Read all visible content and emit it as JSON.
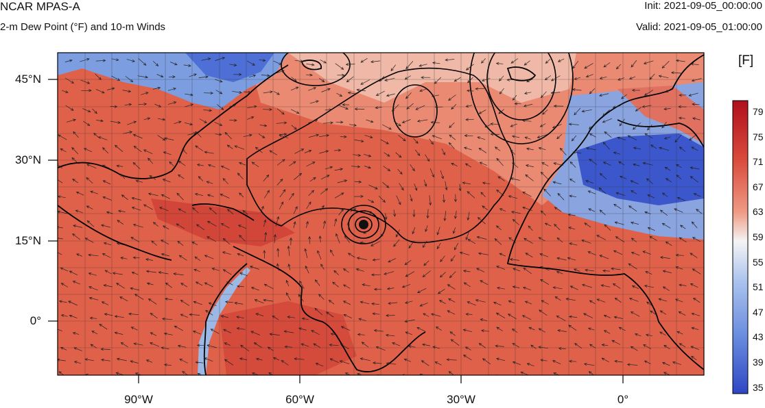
{
  "header": {
    "model": "NCAR MPAS-A",
    "field": "2-m Dew Point (°F) and 10-m Winds",
    "init": "Init: 2021-09-05_00:00:00",
    "valid": "Valid: 2021-09-05_01:00:00"
  },
  "map": {
    "projection": "cylindrical equidistant",
    "lon_range": [
      -105,
      15
    ],
    "lat_range": [
      -10,
      50
    ],
    "lat_ticks": [
      {
        "lat": 45,
        "label": "45°N"
      },
      {
        "lat": 30,
        "label": "30°N"
      },
      {
        "lat": 15,
        "label": "15°N"
      },
      {
        "lat": 0,
        "label": "0°"
      }
    ],
    "lon_ticks": [
      {
        "lon": -90,
        "label": "90°W"
      },
      {
        "lon": -60,
        "label": "60°W"
      },
      {
        "lon": -30,
        "label": "30°W"
      },
      {
        "lon": 0,
        "label": "0°"
      }
    ],
    "gridlines": true,
    "grid_spacing_deg": 5,
    "overlays": [
      "coastlines",
      "pressure contours",
      "wind arrows"
    ],
    "hurricane_center": {
      "lon": -47,
      "lat": 18
    }
  },
  "colorbar": {
    "unit": "[F]",
    "min": 35,
    "max": 81,
    "labels": [
      "79",
      "75",
      "71",
      "67",
      "63",
      "59",
      "55",
      "51",
      "47",
      "43",
      "39",
      "35"
    ],
    "low_color": "#2e46c4",
    "mid_color": "#f4f4f4",
    "high_color": "#b0101c"
  }
}
